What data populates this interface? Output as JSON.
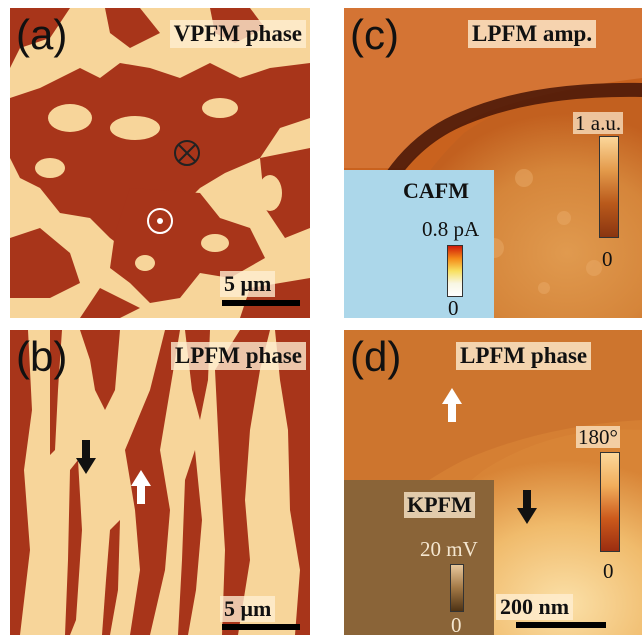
{
  "panels": {
    "a": {
      "tag": "(a)",
      "title": "VPFM phase",
      "scale_label": "5 μm",
      "symbols": [
        "into-page",
        "out-of-page"
      ]
    },
    "b": {
      "tag": "(b)",
      "title": "LPFM phase",
      "scale_label": "5 μm",
      "arrows": [
        "down",
        "up"
      ]
    },
    "c": {
      "tag": "(c)",
      "title": "LPFM amp.",
      "colorbar": {
        "max_label": "1 a.u.",
        "min_label": "0"
      },
      "inset": {
        "title": "CAFM",
        "colorbar": {
          "max_label": "0.8 pA",
          "min_label": "0"
        }
      }
    },
    "d": {
      "tag": "(d)",
      "title": "LPFM phase",
      "colorbar": {
        "max_label": "180°",
        "min_label": "0"
      },
      "scale_label": "200 nm",
      "arrows": [
        "up",
        "down"
      ],
      "inset": {
        "title": "KPFM",
        "colorbar": {
          "max_label": "20 mV",
          "min_label": "0"
        }
      }
    }
  },
  "colors": {
    "domain_dark": "#a8351a",
    "domain_light": "#f7d59a",
    "lpfm_amp_dark": "#4e1a08",
    "cafm_bg": "#acd7ea",
    "kpfm_bg": "#8a6438"
  }
}
